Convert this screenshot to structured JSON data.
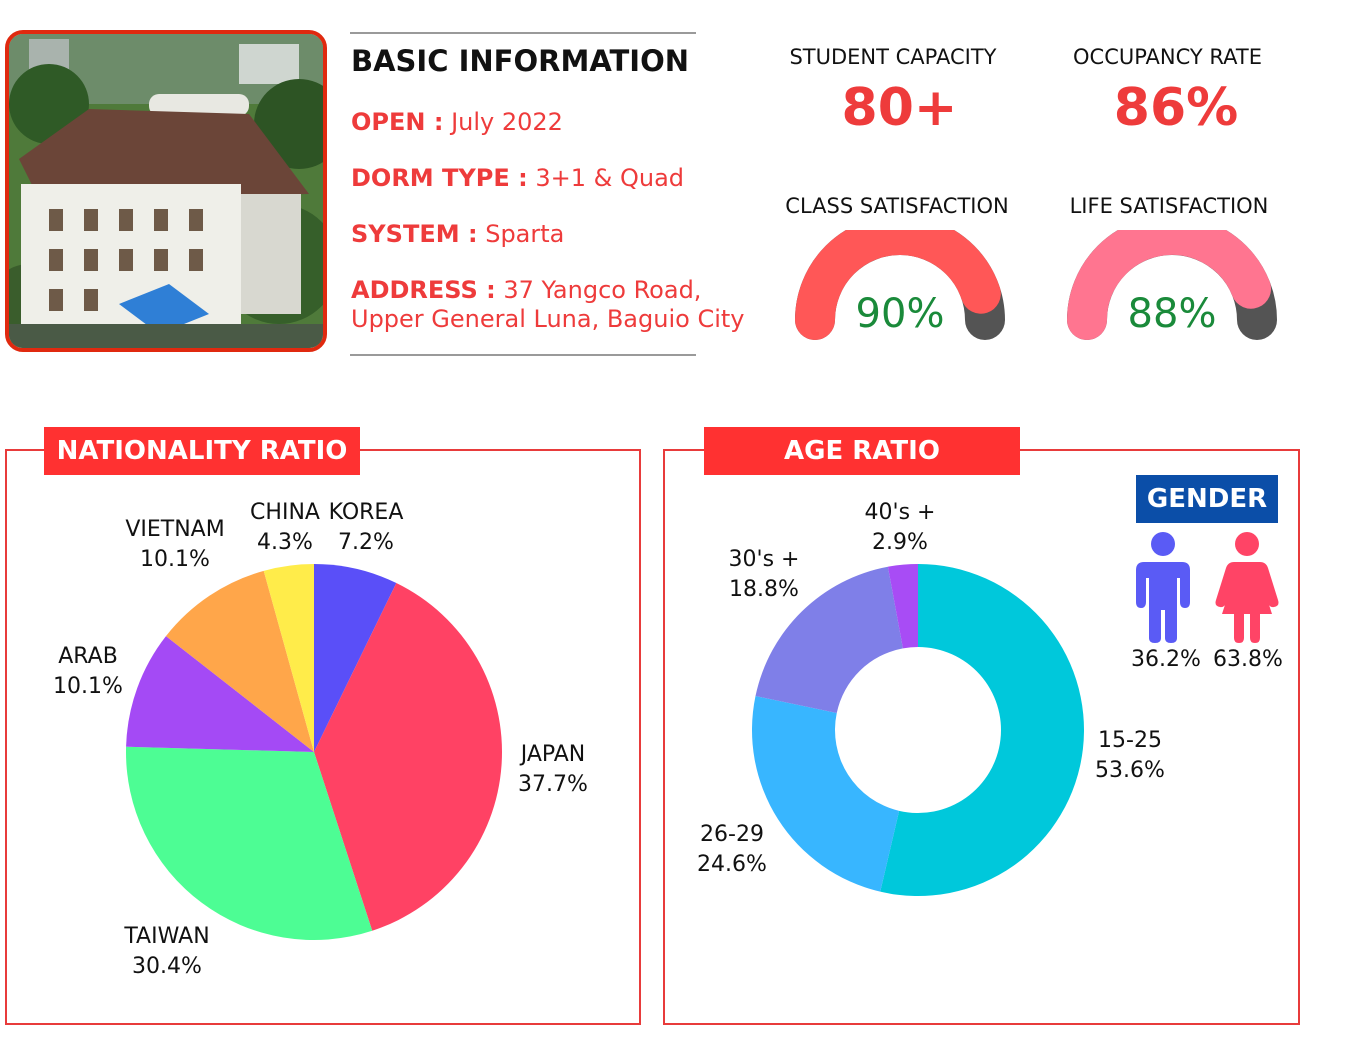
{
  "basic_info": {
    "title": "BASIC INFORMATION",
    "open_label": "OPEN :",
    "open_value": "July 2022",
    "dorm_label": "DORM TYPE :",
    "dorm_value": "3+1 & Quad",
    "system_label": "SYSTEM :",
    "system_value": "Sparta",
    "address_label": "ADDRESS :",
    "address_value_1": "37 Yangco Road,",
    "address_value_2": "Upper General Luna, Baguio City"
  },
  "stats": {
    "capacity_label": "STUDENT CAPACITY",
    "capacity_value": "80+",
    "occupancy_label": "OCCUPANCY RATE",
    "occupancy_value": "86%",
    "class_label": "CLASS SATISFACTION",
    "class_value": "90%",
    "class_fraction": 0.9,
    "life_label": "LIFE SATISFACTION",
    "life_value": "88%",
    "life_fraction": 0.88
  },
  "colors": {
    "accent": "#ff3131",
    "class_gauge": "#ff5757",
    "life_gauge": "#ff7590",
    "gauge_track": "#545454",
    "gender_male": "#5a5bf5",
    "gender_female": "#ff4466",
    "gender_tag": "#0b4ea8"
  },
  "chart_data": [
    {
      "type": "pie",
      "title": "NATIONALITY RATIO",
      "categories": [
        "KOREA",
        "JAPAN",
        "TAIWAN",
        "ARAB",
        "VIETNAM",
        "CHINA"
      ],
      "values": [
        7.2,
        37.7,
        30.4,
        10.1,
        10.1,
        4.3
      ],
      "labels": [
        "7.2%",
        "37.7%",
        "30.4%",
        "10.1%",
        "10.1%",
        "4.3%"
      ],
      "colors": [
        "#5a4ff8",
        "#ff4264",
        "#4dfd94",
        "#a44af5",
        "#ffa64a",
        "#ffec4a"
      ]
    },
    {
      "type": "pie",
      "title": "AGE RATIO",
      "categories": [
        "15-25",
        "26-29",
        "30's +",
        "40's +"
      ],
      "values": [
        53.6,
        24.6,
        18.8,
        2.9
      ],
      "labels": [
        "53.6%",
        "24.6%",
        "18.8%",
        "2.9%"
      ],
      "colors": [
        "#00c8db",
        "#38b6ff",
        "#7f7fe8",
        "#a84cf5"
      ]
    }
  ],
  "gender": {
    "title": "GENDER",
    "male_icon": "male-person-icon",
    "female_icon": "female-person-icon",
    "male_value": "36.2%",
    "female_value": "63.8%"
  }
}
